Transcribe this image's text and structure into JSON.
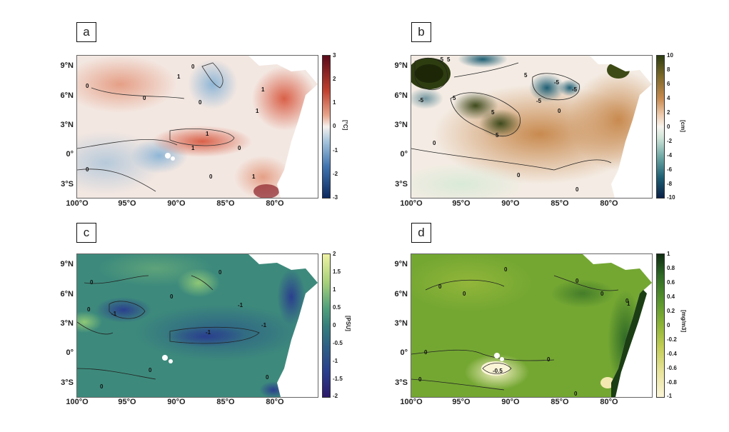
{
  "panels": [
    {
      "label": "a",
      "unit": "[°C]",
      "colorbar_ticks": [
        "3",
        "2",
        "1",
        "0",
        "-1",
        "-2",
        "-3"
      ],
      "colors": [
        "#5a0a1a",
        "#c0422f",
        "#e7a58c",
        "#f6f1ee",
        "#a8c6dd",
        "#3f74b0",
        "#0c2a60"
      ],
      "contour_labels": [
        "0",
        "0",
        "0",
        "0",
        "0",
        "0",
        "0",
        "1",
        "1",
        "1",
        "1",
        "1",
        "1"
      ]
    },
    {
      "label": "b",
      "unit": "[cm]",
      "colorbar_ticks": [
        "10",
        "8",
        "6",
        "4",
        "2",
        "0",
        "-2",
        "-4",
        "-6",
        "-8",
        "-10"
      ],
      "colors": [
        "#2e3d10",
        "#7f6a2a",
        "#c88a4f",
        "#efcdb0",
        "#f7f4ef",
        "#cfe4d8",
        "#6aa5a3",
        "#1d5e73",
        "#0b2148"
      ],
      "contour_labels": [
        "5",
        "-5",
        "-5",
        "5",
        "5",
        "5",
        "5",
        "-5",
        "-5",
        "-5",
        "0",
        "0",
        "0",
        "0"
      ]
    },
    {
      "label": "c",
      "unit": "[PSU]",
      "colorbar_ticks": [
        "2",
        "1.5",
        "1",
        "0.5",
        "0",
        "-0.5",
        "-1",
        "-1.5",
        "-2"
      ],
      "colors": [
        "#eef2a2",
        "#a6d07a",
        "#4fa07c",
        "#357f7c",
        "#2d5f86",
        "#2a3f8e",
        "#2d1b6b"
      ],
      "contour_labels": [
        "0",
        "0",
        "0",
        "0",
        "0",
        "-1",
        "-1",
        "-1",
        "-1",
        "0",
        "0"
      ]
    },
    {
      "label": "d",
      "unit": "[mg/m3]",
      "colorbar_ticks": [
        "1",
        "0.8",
        "0.6",
        "0.4",
        "0.2",
        "0",
        "-0.2",
        "-0.4",
        "-0.6",
        "-0.8",
        "-1"
      ],
      "colors": [
        "#0f2d12",
        "#2f6a26",
        "#5e9a2e",
        "#8fb537",
        "#c2cd55",
        "#e8e39a",
        "#fbf5d8"
      ],
      "contour_labels": [
        "0",
        "0",
        "0",
        "0",
        "0",
        "0",
        "0",
        "0",
        "0",
        "0",
        "-0.5",
        "1"
      ]
    }
  ],
  "lat_ticks": [
    "9°N",
    "6°N",
    "3°N",
    "0°",
    "3°S"
  ],
  "lon_ticks": [
    "100°O",
    "95°O",
    "90°O",
    "85°O",
    "80°O"
  ]
}
